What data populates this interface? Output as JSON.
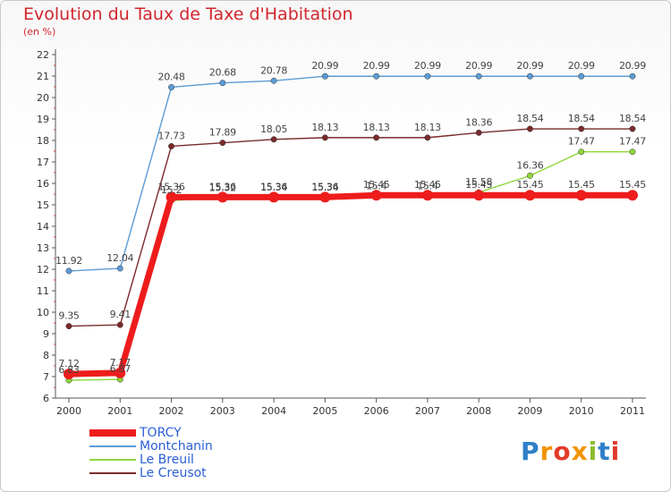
{
  "title": "Evolution du Taux de Taxe d'Habitation",
  "subtitle": "(en %)",
  "logo": {
    "text": "Proxiti",
    "colors": [
      "#2f7fc9",
      "#f29400",
      "#e23a2a",
      "#f29400",
      "#8bbd2b",
      "#2f7fc9",
      "#e23a2a"
    ]
  },
  "chart_data": {
    "type": "line",
    "x": [
      "2000",
      "2001",
      "2002",
      "2003",
      "2004",
      "2005",
      "2006",
      "2007",
      "2008",
      "2009",
      "2010",
      "2011"
    ],
    "ylim": [
      6,
      22
    ],
    "yticks": [
      6,
      7,
      8,
      9,
      10,
      11,
      12,
      13,
      14,
      15,
      16,
      17,
      18,
      19,
      20,
      21,
      22
    ],
    "grid": false,
    "legend_position": "bottom-left",
    "series": [
      {
        "name": "Montchanin",
        "color": "#5b9bd5",
        "values": [
          11.92,
          12.04,
          20.48,
          20.68,
          20.78,
          20.99,
          20.99,
          20.99,
          20.99,
          20.99,
          20.99,
          20.99
        ],
        "labels": [
          "11.92",
          "12.04",
          "20.48",
          "20.68",
          "20.78",
          "20.99",
          "20.99",
          "20.99",
          "20.99",
          "20.99",
          "20.99",
          "20.99"
        ]
      },
      {
        "name": "Le Creusot",
        "color": "#7a2a2a",
        "values": [
          9.35,
          9.41,
          17.73,
          17.89,
          18.05,
          18.13,
          18.13,
          18.13,
          18.36,
          18.54,
          18.54,
          18.54
        ],
        "labels": [
          "9.35",
          "9.41",
          "17.73",
          "17.89",
          "18.05",
          "18.13",
          "18.13",
          "18.13",
          "18.36",
          "18.54",
          "18.54",
          "18.54"
        ]
      },
      {
        "name": "Le Breuil",
        "color": "#8ed63a",
        "values": [
          6.83,
          6.87,
          15.2,
          15.32,
          15.34,
          15.34,
          15.4,
          15.4,
          15.58,
          16.36,
          17.47,
          17.47
        ],
        "labels": [
          "6.83",
          "6.87",
          "15.2",
          "15.32",
          "15.34",
          "15.34",
          "15.4",
          "15.4",
          "15.58",
          "16.36",
          "17.47",
          "17.47"
        ]
      },
      {
        "name": "TORCY",
        "color": "#ee1c1c",
        "values": [
          7.12,
          7.17,
          15.36,
          15.36,
          15.36,
          15.36,
          15.45,
          15.45,
          15.45,
          15.45,
          15.45,
          15.45
        ],
        "labels": [
          "7.12",
          "7.17",
          "15.36",
          "15.36",
          "15.36",
          "15.36",
          "15.45",
          "15.45",
          "15.45",
          "15.45",
          "15.45",
          "15.45"
        ]
      }
    ],
    "legend_order": [
      "TORCY",
      "Montchanin",
      "Le Breuil",
      "Le Creusot"
    ]
  }
}
